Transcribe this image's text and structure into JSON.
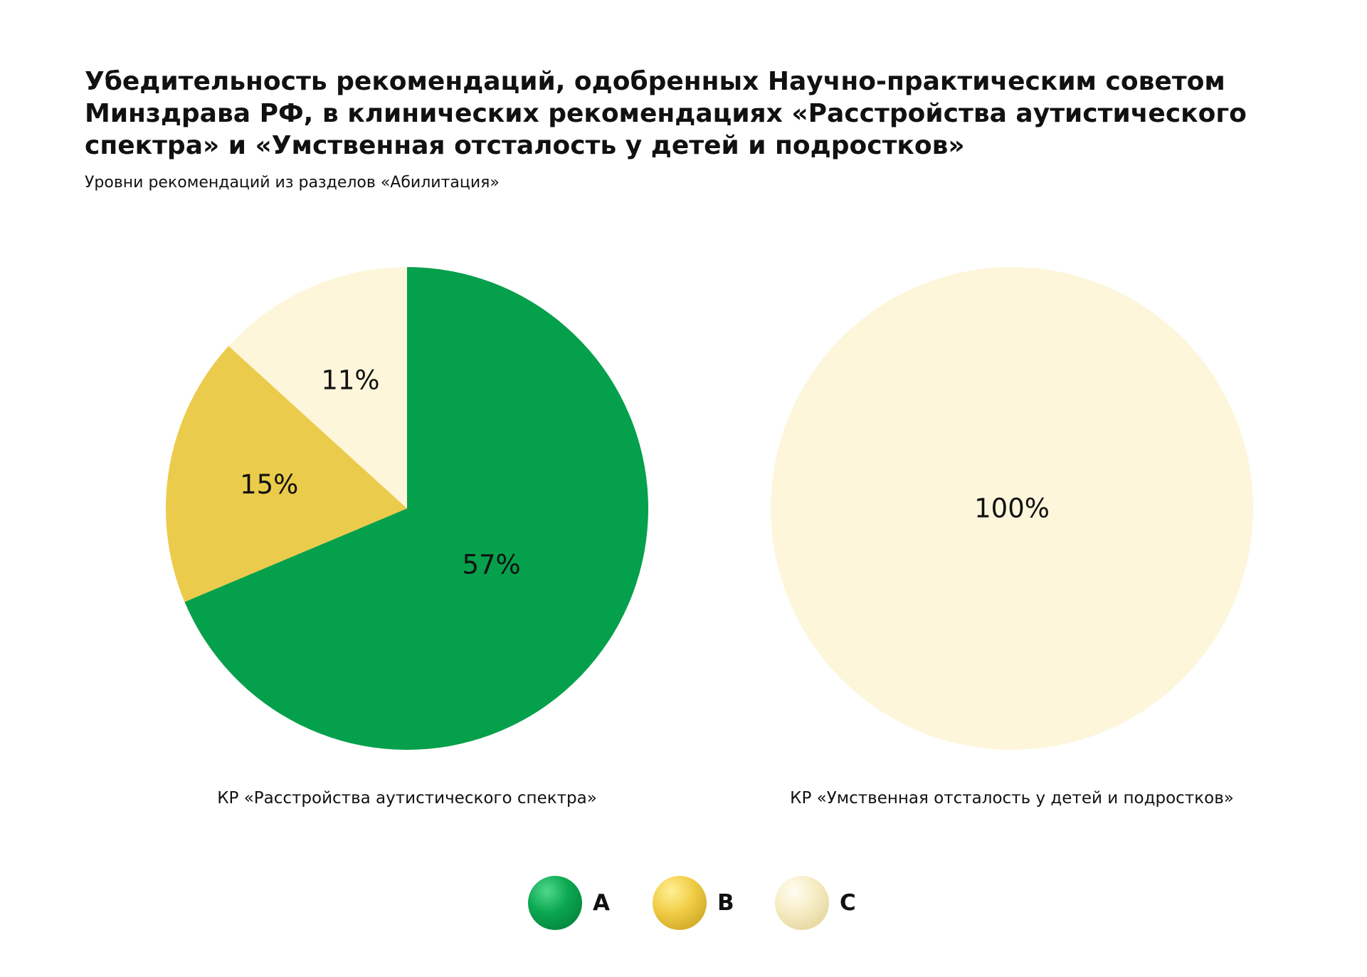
{
  "header": {
    "title": "Убедительность рекомендаций, одобренных Научно-практическим советом Минздрава РФ, в клинических рекомендациях «Расстройства аутистического спектра» и «Умственная отсталость у детей и подростков»",
    "subtitle": "Уровни рекомендаций из разделов «Абилитация»"
  },
  "colors": {
    "A": "#05a04b",
    "B": "#ebcb4b",
    "C": "#fdf6db"
  },
  "chart_data": [
    {
      "type": "pie",
      "caption": "КР «Расстройства аутистического спектра»",
      "slices": [
        {
          "category": "A",
          "value": 57,
          "label": "57%"
        },
        {
          "category": "B",
          "value": 15,
          "label": "15%"
        },
        {
          "category": "C",
          "value": 11,
          "label": "11%"
        }
      ]
    },
    {
      "type": "pie",
      "caption": "КР «Умственная отсталость у детей и подростков»",
      "slices": [
        {
          "category": "C",
          "value": 100,
          "label": "100%"
        }
      ]
    }
  ],
  "legend": [
    {
      "category": "A",
      "label": "A"
    },
    {
      "category": "B",
      "label": "B"
    },
    {
      "category": "C",
      "label": "C"
    }
  ]
}
